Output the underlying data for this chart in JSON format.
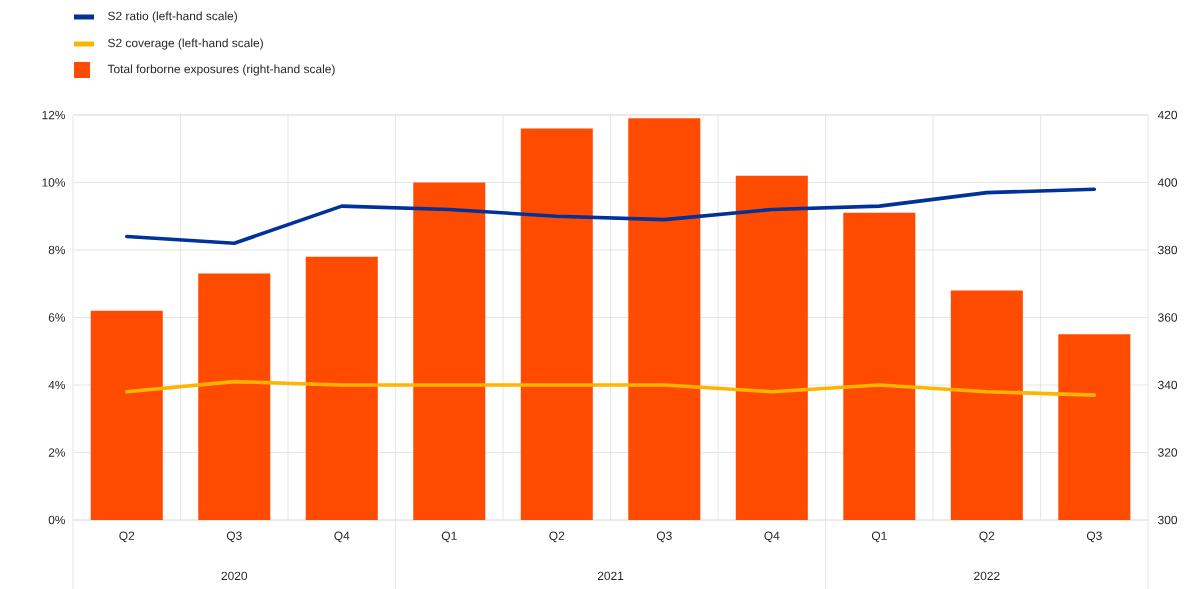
{
  "chart_data": {
    "type": "bar",
    "categories": [
      "Q2",
      "Q3",
      "Q4",
      "Q1",
      "Q2",
      "Q3",
      "Q4",
      "Q1",
      "Q2",
      "Q3"
    ],
    "series": [
      {
        "name": "S2 ratio (left-hand scale)",
        "type": "line",
        "color": "#003299",
        "values": [
          8.4,
          8.2,
          9.3,
          9.2,
          9.0,
          8.9,
          9.2,
          9.3,
          9.7,
          9.8
        ]
      },
      {
        "name": "S2 coverage (left-hand scale)",
        "type": "line",
        "color": "#ffb400",
        "values": [
          3.8,
          4.1,
          4.0,
          4.0,
          4.0,
          4.0,
          3.8,
          4.0,
          3.8,
          3.7
        ]
      },
      {
        "name": "Total forborne exposures (right-hand scale)",
        "axis": "y2",
        "color": "#ff4b00",
        "values": [
          362,
          373,
          378,
          400,
          416,
          419,
          402,
          391,
          368,
          355
        ]
      }
    ],
    "ylim": [
      0,
      12
    ],
    "yticks": [
      {
        "value": 0,
        "label": "0%"
      },
      {
        "value": 2,
        "label": "2%"
      },
      {
        "value": 4,
        "label": "4%"
      },
      {
        "value": 6,
        "label": "6%"
      },
      {
        "value": 8,
        "label": "8%"
      },
      {
        "value": 10,
        "label": "10%"
      },
      {
        "value": 12,
        "label": "12%"
      }
    ],
    "y2lim": [
      300,
      420
    ],
    "y2ticks": [
      300,
      320,
      340,
      360,
      380,
      400,
      420
    ],
    "grid": true,
    "legend": "top left",
    "annotations": [
      "2020",
      "2021",
      "2022"
    ]
  }
}
